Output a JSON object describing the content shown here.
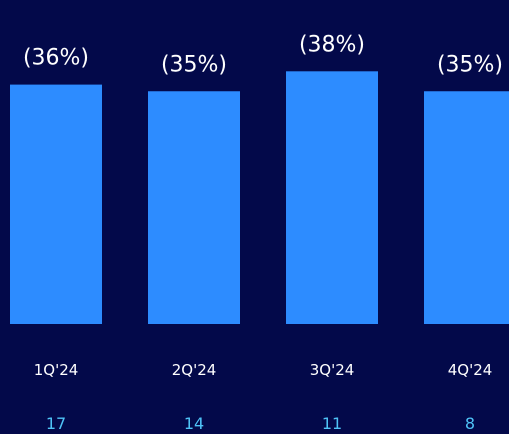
{
  "chart_data": {
    "type": "bar",
    "title": "",
    "xlabel": "",
    "ylabel": "",
    "categories": [
      "1Q'24",
      "2Q'24",
      "3Q'24",
      "4Q'24"
    ],
    "series": [
      {
        "values": [
          36,
          35,
          38,
          35
        ],
        "labels": [
          "(36%)",
          "(35%)",
          "(38%)",
          "(35%)"
        ]
      }
    ],
    "secondary_row": [
      "17",
      "14",
      "11",
      "8"
    ],
    "ylim": [
      0,
      40
    ],
    "grid": false,
    "legend": "none"
  },
  "colors": {
    "background": "#03094a",
    "bar": "#2d8cff",
    "text": "#ffffff",
    "secondary_text": "#4fc3f7"
  }
}
